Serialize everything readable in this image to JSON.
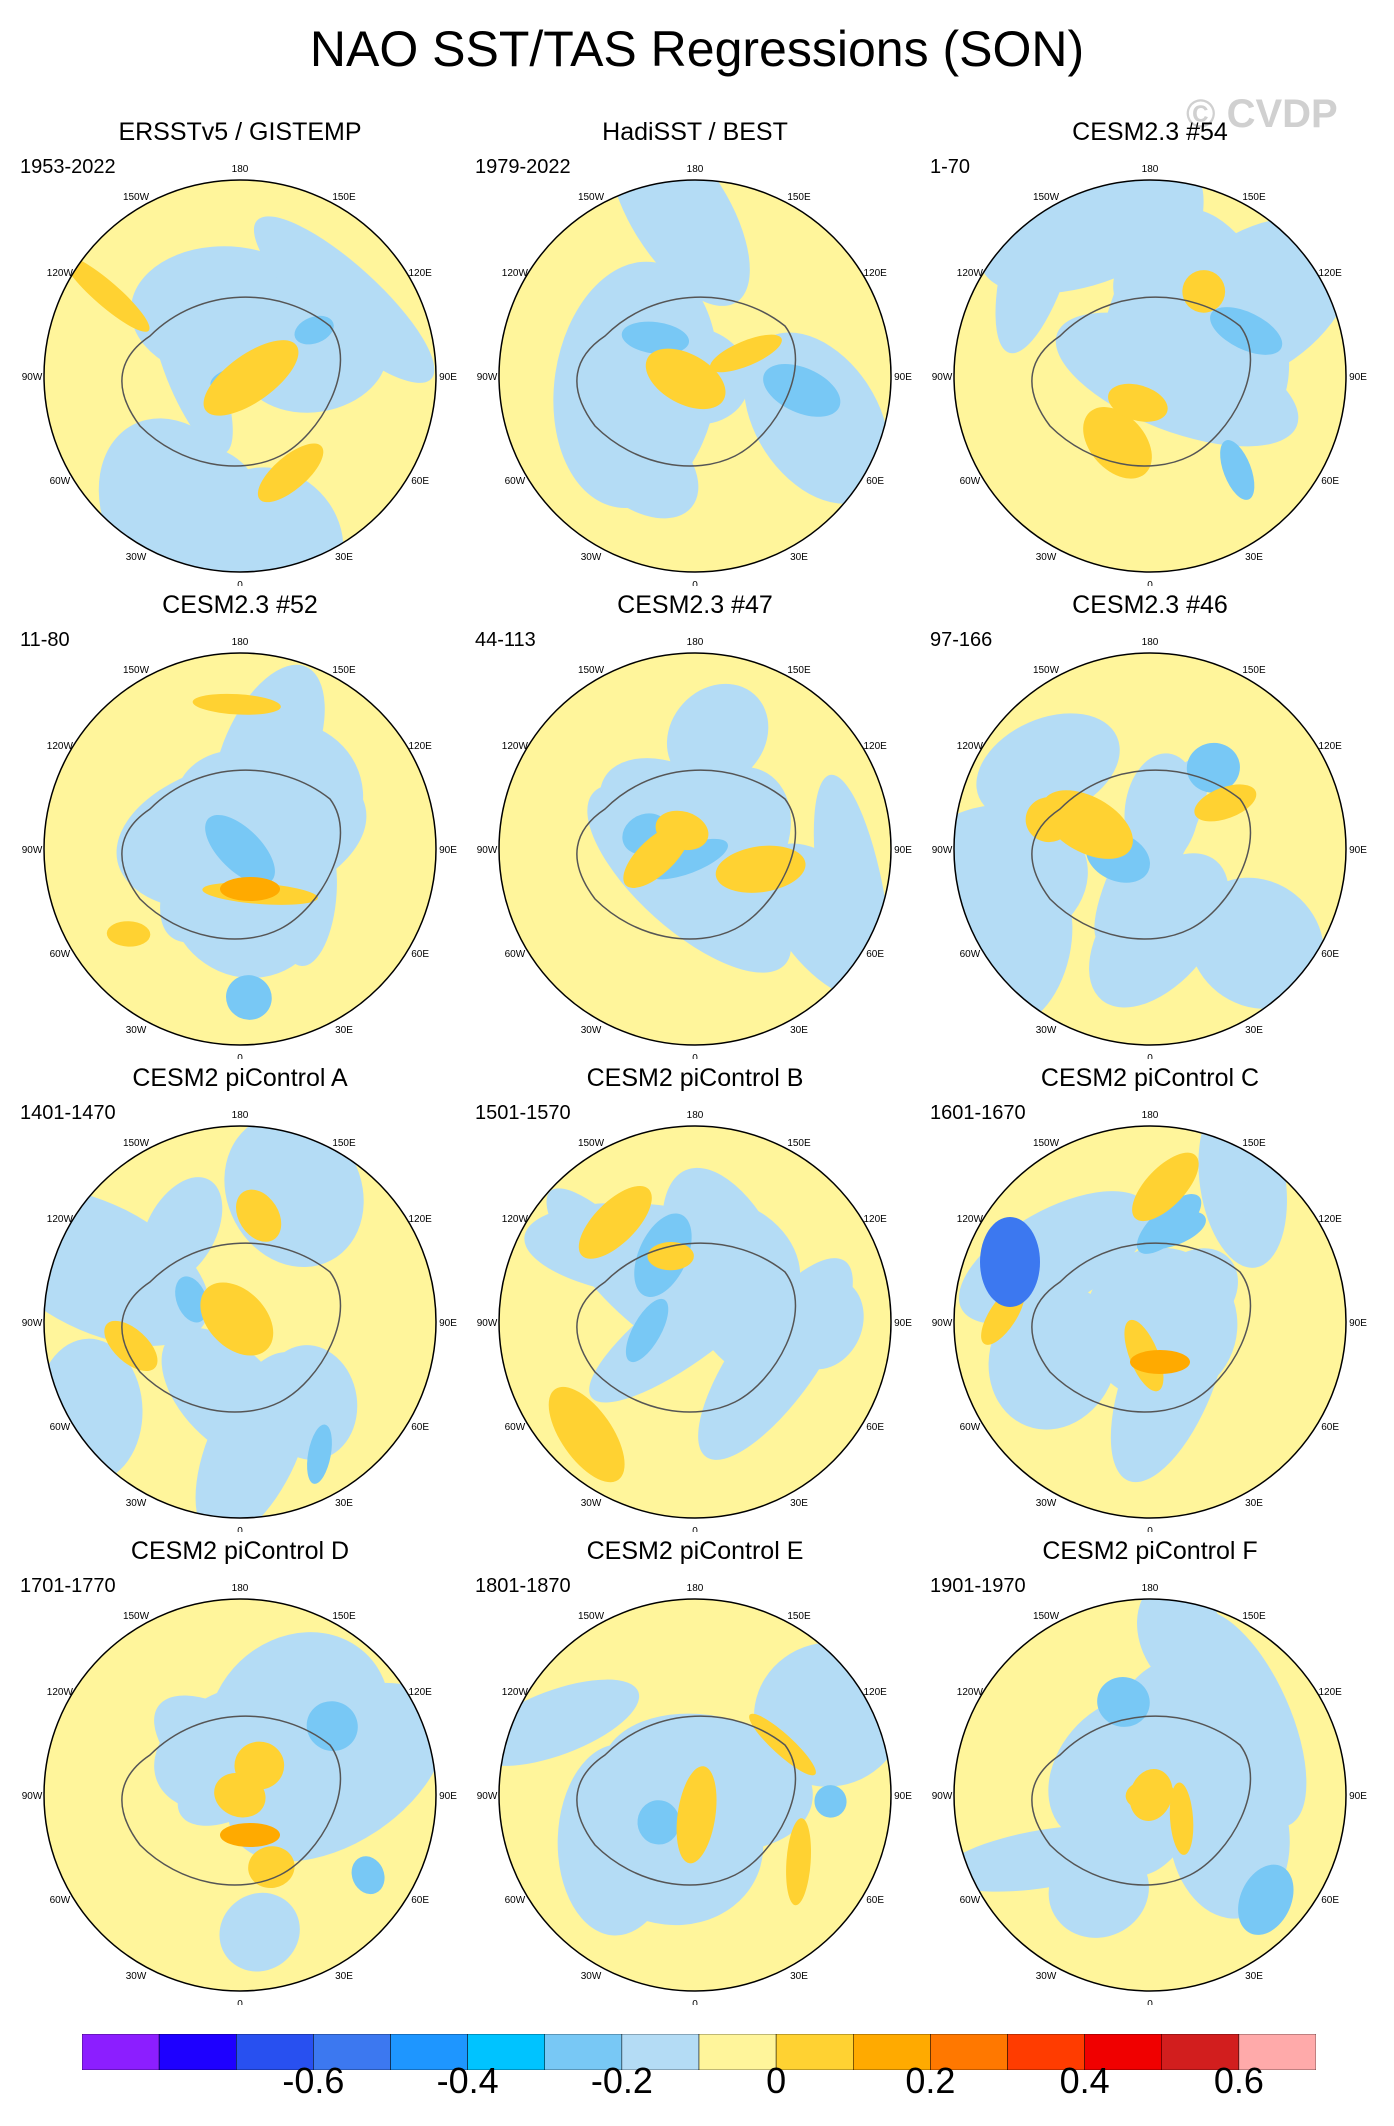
{
  "title": "NAO SST/TAS Regressions (SON)",
  "watermark": "© CVDP",
  "lon_labels": [
    "180",
    "150E",
    "120E",
    "90E",
    "60E",
    "30E",
    "0",
    "30W",
    "60W",
    "90W",
    "120W",
    "150W"
  ],
  "panels": [
    {
      "title": "ERSSTv5 / GISTEMP",
      "years": "1953-2022"
    },
    {
      "title": "HadiSST / BEST",
      "years": "1979-2022"
    },
    {
      "title": "CESM2.3 #54",
      "years": "1-70"
    },
    {
      "title": "CESM2.3 #52",
      "years": "11-80"
    },
    {
      "title": "CESM2.3 #47",
      "years": "44-113"
    },
    {
      "title": "CESM2.3 #46",
      "years": "97-166"
    },
    {
      "title": "CESM2 piControl A",
      "years": "1401-1470"
    },
    {
      "title": "CESM2 piControl B",
      "years": "1501-1570"
    },
    {
      "title": "CESM2 piControl C",
      "years": "1601-1670"
    },
    {
      "title": "CESM2 piControl D",
      "years": "1701-1770"
    },
    {
      "title": "CESM2 piControl E",
      "years": "1801-1870"
    },
    {
      "title": "CESM2 piControl F",
      "years": "1901-1970"
    }
  ],
  "colorbar": {
    "colors": [
      "#8c1eff",
      "#1e00ff",
      "#2850f0",
      "#3c78f0",
      "#1e96ff",
      "#00c3ff",
      "#78c8f5",
      "#b4dcf5",
      "#fff59b",
      "#ffd232",
      "#ffaa00",
      "#ff7800",
      "#ff3c00",
      "#f00000",
      "#d21e1e",
      "#ffaaaa"
    ],
    "labels": [
      "-0.6",
      "-0.4",
      "-0.2",
      "0",
      "0.2",
      "0.4",
      "0.6"
    ]
  },
  "colors": {
    "ocean_neg": "#b4dcf5",
    "ocean_pos": "#fff59b",
    "mod_neg": "#78c8f5",
    "mod_pos": "#ffd232",
    "strong_neg": "#3c78f0",
    "strong_pos": "#ffaa00",
    "coast": "#555555"
  }
}
